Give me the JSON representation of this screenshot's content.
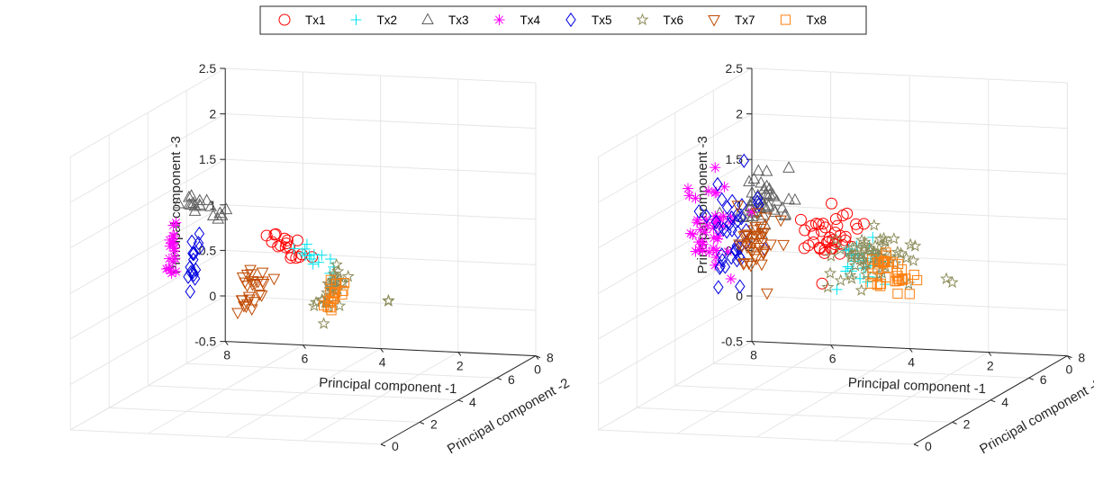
{
  "legend": {
    "entries": [
      {
        "name": "Tx1",
        "marker": "circle",
        "color": "#ff0000"
      },
      {
        "name": "Tx2",
        "marker": "plus",
        "color": "#00e5ee"
      },
      {
        "name": "Tx3",
        "marker": "triangle-up",
        "color": "#606060"
      },
      {
        "name": "Tx4",
        "marker": "asterisk",
        "color": "#ff00ff"
      },
      {
        "name": "Tx5",
        "marker": "diamond",
        "color": "#0000e0"
      },
      {
        "name": "Tx6",
        "marker": "pentagram",
        "color": "#8c8c5a"
      },
      {
        "name": "Tx7",
        "marker": "triangle-down",
        "color": "#c04a00"
      },
      {
        "name": "Tx8",
        "marker": "square",
        "color": "#ff7f0e"
      }
    ]
  },
  "chart_data": [
    {
      "type": "scatter3d",
      "xlabel": "Principal component -1",
      "ylabel": "Principal component -2",
      "zlabel": "Principal component -3",
      "xlim": [
        0,
        8
      ],
      "ylim": [
        0,
        8
      ],
      "zlim": [
        -0.5,
        2.5
      ],
      "xticks": [
        0,
        2,
        4,
        6,
        8
      ],
      "yticks": [
        0,
        2,
        4,
        6,
        8
      ],
      "zticks": [
        -0.5,
        0,
        0.5,
        1,
        1.5,
        2,
        2.5
      ],
      "grid": true,
      "clusters": [
        {
          "name": "Tx1",
          "start": [
            3.6,
            1.6,
            1.55
          ],
          "end": [
            3.2,
            2.4,
            1.2
          ],
          "count": 18,
          "spread": [
            0.15,
            0.1,
            0.04
          ]
        },
        {
          "name": "Tx2",
          "start": [
            2.9,
            1.5,
            1.45
          ],
          "end": [
            2.2,
            1.8,
            1.15
          ],
          "count": 14,
          "spread": [
            0.12,
            0.1,
            0.04
          ]
        },
        {
          "name": "Tx3",
          "start": [
            5.6,
            1.2,
            1.95
          ],
          "end": [
            4.9,
            1.5,
            1.75
          ],
          "count": 18,
          "spread": [
            0.15,
            0.1,
            0.05
          ]
        },
        {
          "name": "Tx4",
          "start": [
            6.7,
            2.7,
            1.4
          ],
          "end": [
            6.8,
            2.8,
            0.85
          ],
          "count": 18,
          "spread": [
            0.06,
            0.06,
            0.06
          ]
        },
        {
          "name": "Tx5",
          "start": [
            6.1,
            2.7,
            1.35
          ],
          "end": [
            6.3,
            2.8,
            0.75
          ],
          "count": 16,
          "spread": [
            0.07,
            0.06,
            0.06
          ]
        },
        {
          "name": "Tx6",
          "start": [
            3.4,
            4.8,
            0.75
          ],
          "end": [
            4.3,
            5.6,
            0.25
          ],
          "count": 34,
          "spread": [
            0.15,
            0.12,
            0.06
          ]
        },
        {
          "name": "Tx7",
          "start": [
            4.6,
            3.0,
            0.95
          ],
          "end": [
            5.7,
            4.2,
            0.35
          ],
          "count": 26,
          "spread": [
            0.15,
            0.12,
            0.06
          ]
        },
        {
          "name": "Tx8",
          "start": [
            3.6,
            5.0,
            0.55
          ],
          "end": [
            4.2,
            5.6,
            0.25
          ],
          "count": 18,
          "spread": [
            0.1,
            0.1,
            0.04
          ]
        }
      ],
      "outliers": [
        {
          "name": "Tx6",
          "x": 2.4,
          "y": 5.2,
          "z": 0.4
        },
        {
          "name": "Tx6",
          "x": 2.3,
          "y": 5.0,
          "z": 0.42
        }
      ]
    },
    {
      "type": "scatter3d",
      "xlabel": "Principal component -1",
      "ylabel": "Principal component -2",
      "zlabel": "Principal component -3",
      "xlim": [
        0,
        8
      ],
      "ylim": [
        0,
        8
      ],
      "zlim": [
        -0.5,
        2.5
      ],
      "xticks": [
        0,
        2,
        4,
        6,
        8
      ],
      "yticks": [
        0,
        2,
        4,
        6,
        8
      ],
      "zticks": [
        -0.5,
        0,
        0.5,
        1,
        1.5,
        2,
        2.5
      ],
      "grid": true,
      "clusters": [
        {
          "name": "Tx1",
          "center": [
            3.3,
            2.2,
            1.45
          ],
          "count": 40,
          "spread": [
            0.35,
            0.3,
            0.15
          ]
        },
        {
          "name": "Tx2",
          "center": [
            2.2,
            2.0,
            1.2
          ],
          "count": 30,
          "spread": [
            0.3,
            0.3,
            0.12
          ]
        },
        {
          "name": "Tx3",
          "center": [
            4.5,
            1.6,
            1.85
          ],
          "count": 45,
          "spread": [
            0.35,
            0.3,
            0.2
          ]
        },
        {
          "name": "Tx4",
          "center": [
            6.5,
            2.9,
            1.45
          ],
          "count": 45,
          "spread": [
            0.3,
            0.25,
            0.25
          ]
        },
        {
          "name": "Tx5",
          "center": [
            5.9,
            2.9,
            1.35
          ],
          "count": 40,
          "spread": [
            0.3,
            0.3,
            0.25
          ]
        },
        {
          "name": "Tx6",
          "center": [
            3.3,
            4.6,
            0.9
          ],
          "count": 60,
          "spread": [
            0.5,
            0.45,
            0.15
          ]
        },
        {
          "name": "Tx7",
          "center": [
            5.3,
            2.8,
            1.3
          ],
          "count": 40,
          "spread": [
            0.3,
            0.3,
            0.2
          ]
        },
        {
          "name": "Tx8",
          "center": [
            2.9,
            4.8,
            0.75
          ],
          "count": 35,
          "spread": [
            0.3,
            0.3,
            0.1
          ]
        }
      ],
      "outliers": [
        {
          "name": "Tx6",
          "x": 1.9,
          "y": 5.6,
          "z": 0.6
        },
        {
          "name": "Tx6",
          "x": 1.8,
          "y": 5.7,
          "z": 0.55
        }
      ]
    }
  ]
}
